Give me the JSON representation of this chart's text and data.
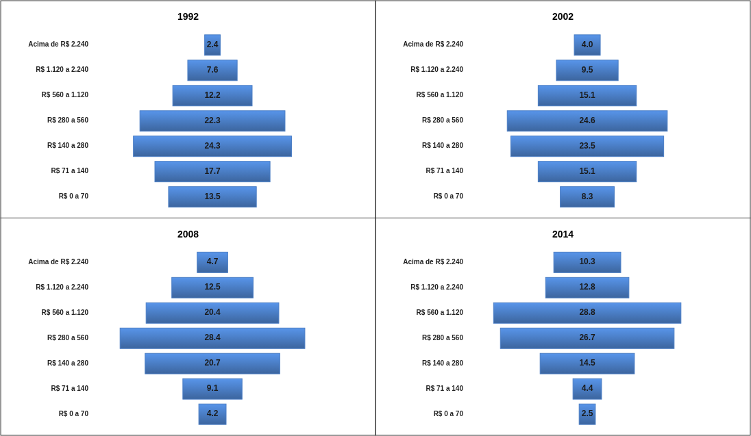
{
  "chart_data": [
    {
      "type": "other",
      "title": "1992",
      "categories": [
        "Acima de R$ 2.240",
        "R$ 1.120 a 2.240",
        "R$ 560 a 1.120",
        "R$ 280 a 560",
        "R$ 140 a 280",
        "R$ 71 a 140",
        "R$ 0 a 70"
      ],
      "values": [
        2.4,
        7.6,
        12.2,
        22.3,
        24.3,
        17.7,
        13.5
      ],
      "value_labels": [
        "2.4",
        "7.6",
        "12.2",
        "22.3",
        "24.3",
        "17.7",
        "13.5"
      ],
      "color": "#4a7dc4"
    },
    {
      "type": "other",
      "title": "2002",
      "categories": [
        "Acima de R$ 2.240",
        "R$ 1.120 a 2.240",
        "R$ 560 a 1.120",
        "R$ 280 a 560",
        "R$ 140 a 280",
        "R$ 71 a 140",
        "R$ 0 a 70"
      ],
      "values": [
        4.0,
        9.5,
        15.1,
        24.6,
        23.5,
        15.1,
        8.3
      ],
      "value_labels": [
        "4.0",
        "9.5",
        "15.1",
        "24.6",
        "23.5",
        "15.1",
        "8.3"
      ],
      "color": "#4a7dc4"
    },
    {
      "type": "other",
      "title": "2008",
      "categories": [
        "Acima de R$ 2.240",
        "R$ 1.120 a 2.240",
        "R$ 560 a 1.120",
        "R$ 280 a 560",
        "R$ 140 a 280",
        "R$ 71 a 140",
        "R$ 0 a 70"
      ],
      "values": [
        4.7,
        12.5,
        20.4,
        28.4,
        20.7,
        9.1,
        4.2
      ],
      "value_labels": [
        "4.7",
        "12.5",
        "20.4",
        "28.4",
        "20.7",
        "9.1",
        "4.2"
      ],
      "color": "#4a7dc4"
    },
    {
      "type": "other",
      "title": "2014",
      "categories": [
        "Acima de R$ 2.240",
        "R$ 1.120 a 2.240",
        "R$ 560 a 1.120",
        "R$ 280 a 560",
        "R$ 140 a 280",
        "R$ 71 a 140",
        "R$ 0 a 70"
      ],
      "values": [
        10.3,
        12.8,
        28.8,
        26.7,
        14.5,
        4.4,
        2.5
      ],
      "value_labels": [
        "10.3",
        "12.8",
        "28.8",
        "26.7",
        "14.5",
        "4.4",
        "2.5"
      ],
      "color": "#4a7dc4"
    }
  ]
}
